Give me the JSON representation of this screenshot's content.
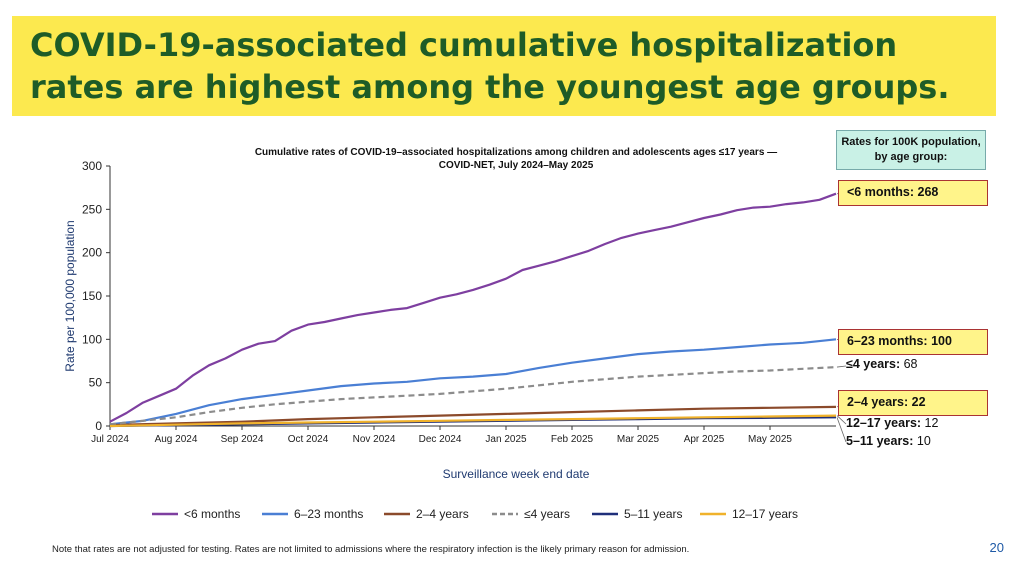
{
  "slide": {
    "title": "COVID-19-associated cumulative hospitalization rates are highest among the youngest age groups.",
    "note": "Note that rates are not adjusted for testing. Rates are not limited to admissions where the respiratory infection is the likely primary reason for admission.",
    "page_number": "20",
    "colors": {
      "banner": "#fce94f",
      "title_text": "#1e5c27"
    }
  },
  "rates_panel": {
    "header": "Rates for 100K population, by age group:",
    "items": [
      {
        "label": "<6 months:",
        "value": "268",
        "boxed": true
      },
      {
        "label": "6–23 months:",
        "value": "100",
        "boxed": true
      },
      {
        "label": "≤4 years:",
        "value": "68",
        "boxed": false
      },
      {
        "label": "2–4 years:",
        "value": "22",
        "boxed": true
      },
      {
        "label": "12–17 years:",
        "value": "12",
        "boxed": false
      },
      {
        "label": "5–11 years:",
        "value": "10",
        "boxed": false
      }
    ]
  },
  "chart_data": {
    "type": "line",
    "title": "Cumulative rates of COVID-19–associated hospitalizations among children and adolescents ages ≤17 years — COVID-NET, July 2024–May 2025",
    "title_lines": [
      "Cumulative rates of COVID-19–associated hospitalizations among children and adolescents ages ≤17 years —",
      "COVID-NET, July 2024–May 2025"
    ],
    "xlabel": "Surveillance week end date",
    "ylabel": "Rate per 100,000 population",
    "ylim": [
      0,
      300
    ],
    "yticks": [
      0,
      50,
      100,
      150,
      200,
      250,
      300
    ],
    "xlim": [
      0,
      11
    ],
    "xticks": [
      {
        "pos": 0,
        "label": "Jul 2024"
      },
      {
        "pos": 1,
        "label": "Aug 2024"
      },
      {
        "pos": 2,
        "label": "Sep 2024"
      },
      {
        "pos": 3,
        "label": "Oct 2024"
      },
      {
        "pos": 4,
        "label": "Nov 2024"
      },
      {
        "pos": 5,
        "label": "Dec 2024"
      },
      {
        "pos": 6,
        "label": "Jan 2025"
      },
      {
        "pos": 7,
        "label": "Feb 2025"
      },
      {
        "pos": 8,
        "label": "Mar 2025"
      },
      {
        "pos": 9,
        "label": "Apr 2025"
      },
      {
        "pos": 10,
        "label": "May 2025"
      }
    ],
    "grid": false,
    "legend_position": "bottom",
    "series": [
      {
        "name": "<6 months",
        "color": "#7e3fa0",
        "dashed": false,
        "points": [
          [
            0,
            5
          ],
          [
            0.25,
            15
          ],
          [
            0.5,
            27
          ],
          [
            0.75,
            35
          ],
          [
            1,
            43
          ],
          [
            1.25,
            58
          ],
          [
            1.5,
            70
          ],
          [
            1.75,
            78
          ],
          [
            2,
            88
          ],
          [
            2.25,
            95
          ],
          [
            2.5,
            98
          ],
          [
            2.75,
            110
          ],
          [
            3,
            117
          ],
          [
            3.25,
            120
          ],
          [
            3.5,
            124
          ],
          [
            3.75,
            128
          ],
          [
            4,
            131
          ],
          [
            4.25,
            134
          ],
          [
            4.5,
            136
          ],
          [
            4.75,
            142
          ],
          [
            5,
            148
          ],
          [
            5.25,
            152
          ],
          [
            5.5,
            157
          ],
          [
            5.75,
            163
          ],
          [
            6,
            170
          ],
          [
            6.25,
            180
          ],
          [
            6.5,
            185
          ],
          [
            6.75,
            190
          ],
          [
            7,
            196
          ],
          [
            7.25,
            202
          ],
          [
            7.5,
            210
          ],
          [
            7.75,
            217
          ],
          [
            8,
            222
          ],
          [
            8.25,
            226
          ],
          [
            8.5,
            230
          ],
          [
            8.75,
            235
          ],
          [
            9,
            240
          ],
          [
            9.25,
            244
          ],
          [
            9.5,
            249
          ],
          [
            9.75,
            252
          ],
          [
            10,
            253
          ],
          [
            10.25,
            256
          ],
          [
            10.5,
            258
          ],
          [
            10.75,
            261
          ],
          [
            11,
            268
          ]
        ]
      },
      {
        "name": "6–23 months",
        "color": "#4a7fd4",
        "dashed": false,
        "points": [
          [
            0,
            2
          ],
          [
            0.5,
            6
          ],
          [
            1,
            14
          ],
          [
            1.5,
            24
          ],
          [
            2,
            31
          ],
          [
            2.5,
            36
          ],
          [
            3,
            41
          ],
          [
            3.5,
            46
          ],
          [
            4,
            49
          ],
          [
            4.5,
            51
          ],
          [
            5,
            55
          ],
          [
            5.5,
            57
          ],
          [
            6,
            60
          ],
          [
            6.5,
            67
          ],
          [
            7,
            73
          ],
          [
            7.5,
            78
          ],
          [
            8,
            83
          ],
          [
            8.5,
            86
          ],
          [
            9,
            88
          ],
          [
            9.5,
            91
          ],
          [
            10,
            94
          ],
          [
            10.25,
            95
          ],
          [
            10.5,
            96
          ],
          [
            11,
            100
          ]
        ]
      },
      {
        "name": "2–4 years",
        "color": "#8b4a2b",
        "dashed": false,
        "points": [
          [
            0,
            1
          ],
          [
            1,
            3
          ],
          [
            2,
            5
          ],
          [
            3,
            8
          ],
          [
            4,
            10
          ],
          [
            5,
            12
          ],
          [
            6,
            14
          ],
          [
            7,
            16
          ],
          [
            8,
            18
          ],
          [
            9,
            20
          ],
          [
            10,
            21
          ],
          [
            11,
            22
          ]
        ]
      },
      {
        "name": "≤4 years",
        "color": "#8c8c8c",
        "dashed": true,
        "points": [
          [
            0,
            2
          ],
          [
            0.5,
            6
          ],
          [
            1,
            10
          ],
          [
            1.5,
            16
          ],
          [
            2,
            21
          ],
          [
            2.5,
            25
          ],
          [
            3,
            28
          ],
          [
            3.5,
            31
          ],
          [
            4,
            33
          ],
          [
            4.5,
            35
          ],
          [
            5,
            37
          ],
          [
            5.5,
            40
          ],
          [
            6,
            43
          ],
          [
            6.5,
            47
          ],
          [
            7,
            51
          ],
          [
            7.5,
            54
          ],
          [
            8,
            57
          ],
          [
            8.5,
            59
          ],
          [
            9,
            61
          ],
          [
            9.5,
            63
          ],
          [
            10,
            64
          ],
          [
            10.5,
            66
          ],
          [
            11,
            68
          ]
        ]
      },
      {
        "name": "5–11 years",
        "color": "#1f2f7a",
        "dashed": false,
        "points": [
          [
            0,
            0
          ],
          [
            1,
            1
          ],
          [
            2,
            2
          ],
          [
            3,
            3
          ],
          [
            4,
            4
          ],
          [
            5,
            5
          ],
          [
            6,
            6
          ],
          [
            7,
            7
          ],
          [
            8,
            8
          ],
          [
            9,
            9
          ],
          [
            10,
            9.5
          ],
          [
            11,
            10
          ]
        ]
      },
      {
        "name": "12–17 years",
        "color": "#f0b22b",
        "dashed": false,
        "points": [
          [
            0,
            0
          ],
          [
            1,
            1.5
          ],
          [
            2,
            3
          ],
          [
            3,
            4
          ],
          [
            4,
            5
          ],
          [
            5,
            6
          ],
          [
            6,
            7
          ],
          [
            7,
            8
          ],
          [
            8,
            9
          ],
          [
            9,
            10
          ],
          [
            10,
            11
          ],
          [
            11,
            12
          ]
        ]
      }
    ]
  }
}
